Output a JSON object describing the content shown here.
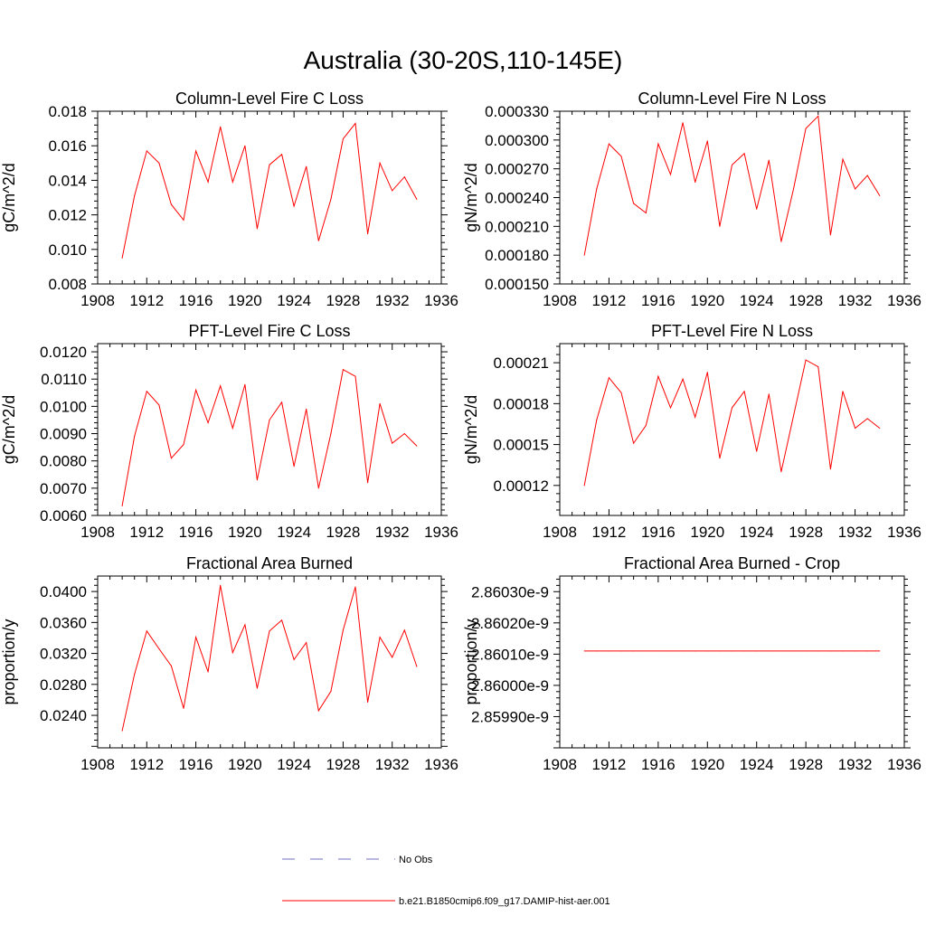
{
  "figure": {
    "title": "Australia (30-20S,110-145E)"
  },
  "legend": {
    "items": [
      {
        "label": "No Obs",
        "color": "#6f6fc0",
        "style": "dashed"
      },
      {
        "label": "b.e21.B1850cmip6.f09_g17.DAMIP-hist-aer.001",
        "color": "#ff0000",
        "style": "solid"
      }
    ]
  },
  "chart_data": [
    {
      "type": "line",
      "title": "Column-Level Fire C Loss",
      "ylabel": "gC/m^2/d",
      "xlim": [
        1908,
        1936
      ],
      "xticks": [
        1908,
        1912,
        1916,
        1920,
        1924,
        1928,
        1932,
        1936
      ],
      "ylim": [
        0.008,
        0.018
      ],
      "yticks": [
        0.008,
        0.01,
        0.012,
        0.014,
        0.016,
        0.018
      ],
      "ytick_labels": [
        "0.008",
        "0.010",
        "0.012",
        "0.014",
        "0.016",
        "0.018"
      ],
      "x": [
        1910,
        1911,
        1912,
        1913,
        1914,
        1915,
        1916,
        1917,
        1918,
        1919,
        1920,
        1921,
        1922,
        1923,
        1924,
        1925,
        1926,
        1927,
        1928,
        1929,
        1930,
        1931,
        1932,
        1933,
        1934
      ],
      "series": [
        {
          "color": "#ff0000",
          "values": [
            0.0095,
            0.0131,
            0.0157,
            0.015,
            0.0126,
            0.0117,
            0.0157,
            0.0139,
            0.0171,
            0.0139,
            0.016,
            0.0112,
            0.0149,
            0.0155,
            0.0125,
            0.0148,
            0.0105,
            0.0129,
            0.0164,
            0.0173,
            0.0109,
            0.015,
            0.0134,
            0.0142,
            0.0129
          ]
        }
      ]
    },
    {
      "type": "line",
      "title": "Column-Level Fire N Loss",
      "ylabel": "gN/m^2/d",
      "xlim": [
        1908,
        1936
      ],
      "xticks": [
        1908,
        1912,
        1916,
        1920,
        1924,
        1928,
        1932,
        1936
      ],
      "ylim": [
        0.00015,
        0.00033
      ],
      "yticks": [
        0.00015,
        0.00018,
        0.00021,
        0.00024,
        0.00027,
        0.0003,
        0.00033
      ],
      "ytick_labels": [
        "0.000150",
        "0.000180",
        "0.000210",
        "0.000240",
        "0.000270",
        "0.000300",
        "0.000330"
      ],
      "x": [
        1910,
        1911,
        1912,
        1913,
        1914,
        1915,
        1916,
        1917,
        1918,
        1919,
        1920,
        1921,
        1922,
        1923,
        1924,
        1925,
        1926,
        1927,
        1928,
        1929,
        1930,
        1931,
        1932,
        1933,
        1934
      ],
      "series": [
        {
          "color": "#ff0000",
          "values": [
            0.00018,
            0.000249,
            0.000296,
            0.000283,
            0.000234,
            0.000224,
            0.000296,
            0.000264,
            0.000318,
            0.000256,
            0.000299,
            0.00021,
            0.000274,
            0.000286,
            0.000228,
            0.000279,
            0.000194,
            0.000249,
            0.000312,
            0.000325,
            0.000201,
            0.00028,
            0.000249,
            0.000263,
            0.000242
          ]
        }
      ]
    },
    {
      "type": "line",
      "title": "PFT-Level Fire C Loss",
      "ylabel": "gC/m^2/d",
      "xlim": [
        1908,
        1936
      ],
      "xticks": [
        1908,
        1912,
        1916,
        1920,
        1924,
        1928,
        1932,
        1936
      ],
      "ylim": [
        0.006,
        0.0123
      ],
      "yticks": [
        0.006,
        0.007,
        0.008,
        0.009,
        0.01,
        0.011,
        0.012
      ],
      "ytick_labels": [
        "0.0060",
        "0.0070",
        "0.0080",
        "0.0090",
        "0.0100",
        "0.0110",
        "0.0120"
      ],
      "x": [
        1910,
        1911,
        1912,
        1913,
        1914,
        1915,
        1916,
        1917,
        1918,
        1919,
        1920,
        1921,
        1922,
        1923,
        1924,
        1925,
        1926,
        1927,
        1928,
        1929,
        1930,
        1931,
        1932,
        1933,
        1934
      ],
      "series": [
        {
          "color": "#ff0000",
          "values": [
            0.00635,
            0.0089,
            0.01055,
            0.01005,
            0.0081,
            0.0086,
            0.0106,
            0.0094,
            0.01075,
            0.0092,
            0.0108,
            0.0073,
            0.0095,
            0.01015,
            0.0078,
            0.0099,
            0.007,
            0.009,
            0.01135,
            0.0111,
            0.0072,
            0.0101,
            0.00865,
            0.009,
            0.00855
          ]
        }
      ]
    },
    {
      "type": "line",
      "title": "PFT-Level Fire N Loss",
      "ylabel": "gN/m^2/d",
      "xlim": [
        1908,
        1936
      ],
      "xticks": [
        1908,
        1912,
        1916,
        1920,
        1924,
        1928,
        1932,
        1936
      ],
      "ylim": [
        9.8e-05,
        0.000224
      ],
      "yticks": [
        0.00012,
        0.00015,
        0.00018,
        0.00021
      ],
      "ytick_labels": [
        "0.00012",
        "0.00015",
        "0.00018",
        "0.00021"
      ],
      "x": [
        1910,
        1911,
        1912,
        1913,
        1914,
        1915,
        1916,
        1917,
        1918,
        1919,
        1920,
        1921,
        1922,
        1923,
        1924,
        1925,
        1926,
        1927,
        1928,
        1929,
        1930,
        1931,
        1932,
        1933,
        1934
      ],
      "series": [
        {
          "color": "#ff0000",
          "values": [
            0.00012,
            0.000168,
            0.000199,
            0.000188,
            0.000151,
            0.000164,
            0.0002,
            0.000177,
            0.000198,
            0.00017,
            0.000203,
            0.00014,
            0.000177,
            0.000189,
            0.000145,
            0.000187,
            0.00013,
            0.000171,
            0.000212,
            0.000207,
            0.000132,
            0.000189,
            0.000162,
            0.000169,
            0.000162
          ]
        }
      ]
    },
    {
      "type": "line",
      "title": "Fractional Area Burned",
      "ylabel": "proportion/y",
      "xlim": [
        1908,
        1936
      ],
      "xticks": [
        1908,
        1912,
        1916,
        1920,
        1924,
        1928,
        1932,
        1936
      ],
      "ylim": [
        0.0198,
        0.042
      ],
      "yticks": [
        0.024,
        0.028,
        0.032,
        0.036,
        0.04
      ],
      "ytick_labels": [
        "0.0240",
        "0.0280",
        "0.0320",
        "0.0360",
        "0.0400"
      ],
      "x": [
        1910,
        1911,
        1912,
        1913,
        1914,
        1915,
        1916,
        1917,
        1918,
        1919,
        1920,
        1921,
        1922,
        1923,
        1924,
        1925,
        1926,
        1927,
        1928,
        1929,
        1930,
        1931,
        1932,
        1933,
        1934
      ],
      "series": [
        {
          "color": "#ff0000",
          "values": [
            0.022,
            0.0293,
            0.0349,
            0.0326,
            0.0304,
            0.0249,
            0.0341,
            0.0296,
            0.0408,
            0.0321,
            0.0357,
            0.0275,
            0.0349,
            0.0363,
            0.0312,
            0.0334,
            0.0246,
            0.0271,
            0.035,
            0.0406,
            0.0257,
            0.0341,
            0.0315,
            0.035,
            0.0303
          ]
        }
      ]
    },
    {
      "type": "line",
      "title": "Fractional Area Burned - Crop",
      "ylabel": "proportion/y",
      "xlim": [
        1908,
        1936
      ],
      "xticks": [
        1908,
        1912,
        1916,
        1920,
        1924,
        1928,
        1932,
        1936
      ],
      "ylim": [
        2.8598e-09,
        2.86035e-09
      ],
      "yticks": [
        2.8599e-09,
        2.86e-09,
        2.8601e-09,
        2.8602e-09,
        2.8603e-09
      ],
      "ytick_labels": [
        "2.85990e-9",
        "2.86000e-9",
        "2.86010e-9",
        "2.86020e-9",
        "2.86030e-9"
      ],
      "x": [
        1910,
        1911,
        1912,
        1913,
        1914,
        1915,
        1916,
        1917,
        1918,
        1919,
        1920,
        1921,
        1922,
        1923,
        1924,
        1925,
        1926,
        1927,
        1928,
        1929,
        1930,
        1931,
        1932,
        1933,
        1934
      ],
      "series": [
        {
          "color": "#ff0000",
          "values": [
            2.86011e-09,
            2.86011e-09,
            2.86011e-09,
            2.86011e-09,
            2.86011e-09,
            2.86011e-09,
            2.86011e-09,
            2.86011e-09,
            2.86011e-09,
            2.86011e-09,
            2.86011e-09,
            2.86011e-09,
            2.86011e-09,
            2.86011e-09,
            2.86011e-09,
            2.86011e-09,
            2.86011e-09,
            2.86011e-09,
            2.86011e-09,
            2.86011e-09,
            2.86011e-09,
            2.86011e-09,
            2.86011e-09,
            2.86011e-09,
            2.86011e-09
          ]
        }
      ]
    }
  ]
}
